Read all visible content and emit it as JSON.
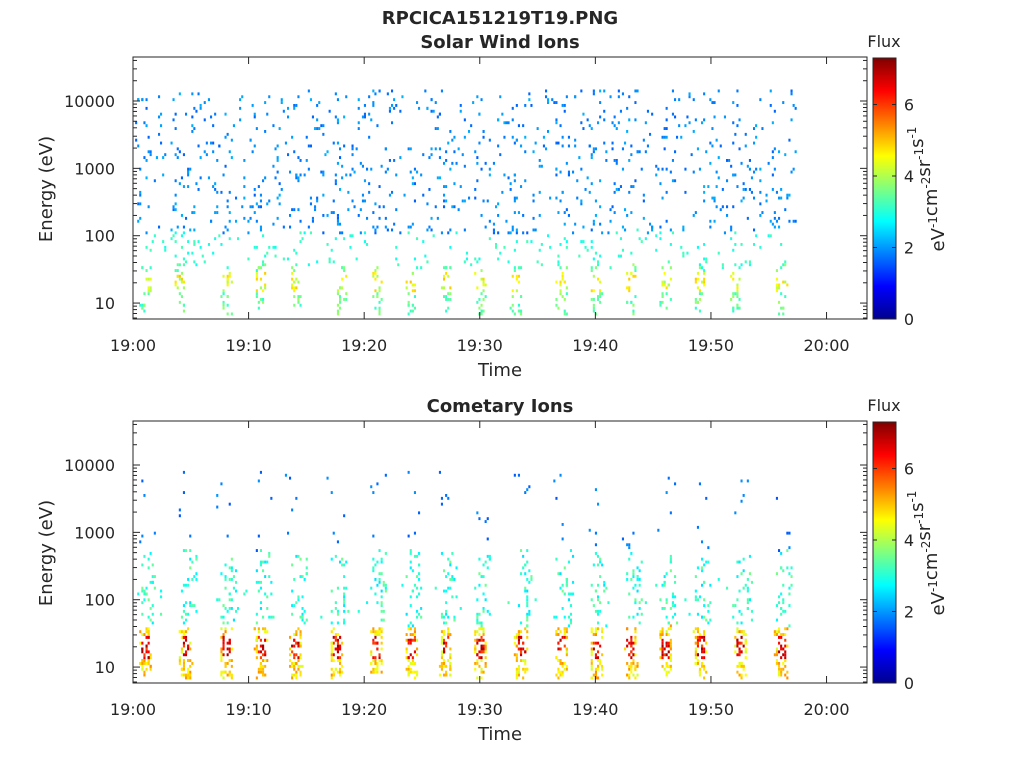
{
  "figure": {
    "title": "RPCICA151219T19.PNG"
  },
  "chart_data": [
    {
      "type": "heatmap",
      "title": "Solar Wind Ions",
      "xlabel": "Time",
      "ylabel": "Energy (eV)",
      "x_ticks": [
        "19:00",
        "19:10",
        "19:20",
        "19:30",
        "19:40",
        "19:50",
        "20:00"
      ],
      "x_range_minutes": [
        0,
        63.5
      ],
      "y_ticks": [
        "10",
        "100",
        "1000",
        "10000"
      ],
      "y_scale": "log",
      "y_range_eV": [
        5.8,
        45000
      ],
      "colorbar": {
        "label": "Flux",
        "units": "eV-1cm-2sr-1s-1",
        "ticks": [
          "0",
          "2",
          "4",
          "6"
        ],
        "range": [
          0,
          7.3
        ],
        "colormap": "jet"
      },
      "data_end_minutes": 57.3,
      "bursts_minutes": [
        1,
        4,
        8,
        11,
        14,
        18,
        21,
        24,
        27,
        30,
        33,
        37,
        40,
        43,
        46,
        49,
        52,
        56
      ],
      "notes": "sparse blue counts (~2 flux) at 100 eV-20 keV; cyan/green (~3-4) bursts at 10-40 eV"
    },
    {
      "type": "heatmap",
      "title": "Cometary Ions",
      "xlabel": "Time",
      "ylabel": "Energy (eV)",
      "x_ticks": [
        "19:00",
        "19:10",
        "19:20",
        "19:30",
        "19:40",
        "19:50",
        "20:00"
      ],
      "x_range_minutes": [
        0,
        63.5
      ],
      "y_ticks": [
        "10",
        "100",
        "1000",
        "10000"
      ],
      "y_scale": "log",
      "y_range_eV": [
        5.8,
        45000
      ],
      "colorbar": {
        "label": "Flux",
        "units": "eV-1cm-2sr-1s-1",
        "ticks": [
          "0",
          "2",
          "4",
          "6"
        ],
        "range": [
          0,
          7.3
        ],
        "colormap": "jet"
      },
      "data_end_minutes": 57.3,
      "bursts_minutes": [
        1,
        4.5,
        8,
        11,
        14,
        17.5,
        21,
        24,
        27,
        30,
        33.5,
        37,
        40,
        43,
        46,
        49,
        52.5,
        56
      ],
      "notes": "periodic bursts peaking red (~6-7 flux) at 10-30 eV, cyan tails up to ~500 eV, sparse blue up to ~10 keV"
    }
  ],
  "label_parts": {
    "unit_base": [
      "eV",
      "cm",
      "sr",
      "s"
    ],
    "unit_exp": [
      "-1",
      "-2",
      "-1",
      "-1"
    ]
  }
}
